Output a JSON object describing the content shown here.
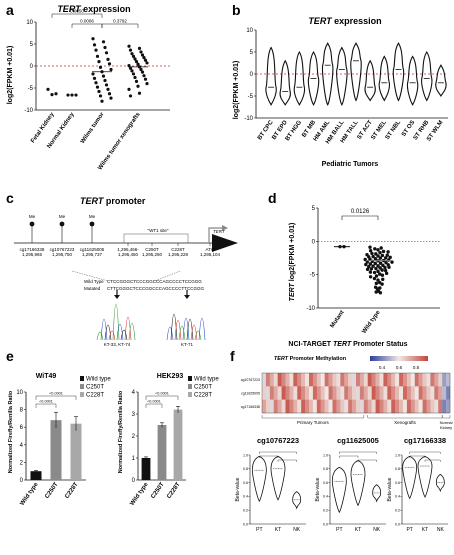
{
  "panels": {
    "a": {
      "letter": "a",
      "title_italic": "TERT",
      "title_rest": " expression",
      "ylabel": "log2(FPKM +0.01)",
      "yticks": [
        "10",
        "5",
        "0",
        "-5",
        "-10"
      ],
      "categories": [
        "Fetal Kidney",
        "Normal Kidney",
        "Wilms tumor",
        "Wilms tumor xenografts"
      ],
      "pvalues": [
        "0.0050",
        "0.0006",
        "0.3792"
      ]
    },
    "b": {
      "letter": "b",
      "title_italic": "TERT",
      "title_rest": " expression",
      "ylabel": "log2(FPKM +0.01)",
      "yticks": [
        "10",
        "5",
        "0",
        "-5",
        "-10"
      ],
      "xlabel": "Pediatric  Tumors",
      "categories": [
        "BT CPC",
        "BT EPD",
        "BT HGG",
        "BT MB",
        "HM AML",
        "HM BALL",
        "HM TALL",
        "ST ACT",
        "ST MEL",
        "ST NBL",
        "ST OS",
        "ST RHB",
        "ST WLM"
      ]
    },
    "c": {
      "letter": "c",
      "title_italic": "TERT",
      "title_rest": " promoter",
      "tert_label": "TERT",
      "wt1_label": "\"WT1 site\"",
      "me_label": "Me",
      "cpgs": [
        {
          "name": "cg17166338",
          "pos": "1,295,965"
        },
        {
          "name": "cg10767223",
          "pos": "1,295,750"
        },
        {
          "name": "cg11625005",
          "pos": "1,295,737"
        }
      ],
      "sites": [
        {
          "name": "1,295,466-1,295,460",
          "pos": ""
        },
        {
          "name": "C250T",
          "pos": "1,295,250"
        },
        {
          "name": "C228T",
          "pos": "1,295,228"
        },
        {
          "name": "ATG",
          "pos": "1,295,104"
        }
      ],
      "wild_label": "Wild Type",
      "wild_seq": "CTCCGGGCTCCCGGCCCAGCCCCTCCGGG",
      "mut_label": "Mutated",
      "mut_seq": "CTTCGGGCTCCCGGCCCAGCCCCTTCCGGG",
      "trace_labels": [
        "KT-33, KT-74",
        "KT-71"
      ]
    },
    "d": {
      "letter": "d",
      "ylabel_italic": "TERT",
      "ylabel_rest": " log2(FPKM +0.01)",
      "yticks": [
        "5",
        "0",
        "-5",
        "-10"
      ],
      "categories": [
        "Mutant",
        "Wild type"
      ],
      "pvalue": "0.0126",
      "xtitle_pre": "NCI-TARGET ",
      "xtitle_italic": "TERT",
      "xtitle_post": " Promoter Status"
    },
    "e": {
      "letter": "e",
      "ylabel": "Normalized Firefly/Renilla Ratio",
      "charts": [
        {
          "title": "WiT49",
          "yticks": [
            "10",
            "8",
            "6",
            "4",
            "2",
            "0"
          ],
          "categories": [
            "Wild type",
            "C250T",
            "C228T"
          ]
        },
        {
          "title": "HEK293",
          "yticks": [
            "4",
            "3",
            "2",
            "1",
            "0"
          ],
          "categories": [
            "Wild type",
            "C250T",
            "C228T"
          ]
        }
      ],
      "sig": "<0.0001",
      "legend": [
        "Wild type",
        "C250T",
        "C228T"
      ]
    },
    "f": {
      "letter": "f",
      "heat_title_pre": "",
      "heat_title_italic": "TERT",
      "heat_title_post": " Promoter Methylation",
      "scale_ticks": [
        "0.4",
        "0.6",
        "0.8"
      ],
      "row_labels": [
        "cg10767223",
        "cg11625005",
        "cg17166338"
      ],
      "groups": [
        "Primary Tumors",
        "Xenografts",
        "Normal Kidney"
      ],
      "violins": [
        {
          "title": "cg10767223"
        },
        {
          "title": "cg11625005"
        },
        {
          "title": "cg17166338"
        }
      ],
      "ylabel": "Beta-value",
      "yticks": [
        "1.0",
        "0.8",
        "0.6",
        "0.4",
        "0.2",
        "0.0"
      ],
      "xcats": [
        "PT",
        "KT",
        "NK"
      ]
    }
  },
  "chart_data": [
    {
      "type": "scatter",
      "panel": "a",
      "title": "TERT expression",
      "ylabel": "log2(FPKM +0.01)",
      "ylim": [
        -10,
        10
      ],
      "categories": [
        "Fetal Kidney",
        "Normal Kidney",
        "Wilms tumor",
        "Wilms tumor xenografts"
      ],
      "series": [
        {
          "values": [
            -5.3,
            -6.5,
            -6.3
          ]
        },
        {
          "values": [
            -6.6,
            -6.6,
            -6.6
          ]
        },
        {
          "values": [
            6.2,
            5.5,
            4.8,
            4.2,
            3.6,
            3.0,
            2.2,
            1.5,
            1.0,
            0.5,
            -0.3,
            -0.8,
            -1.3,
            -1.8,
            -2.3,
            -2.8,
            -3.3,
            -3.8,
            -4.3,
            -4.8,
            -5.3,
            -5.8,
            -6.3,
            -6.8,
            -7.3,
            -8.0
          ]
        },
        {
          "values": [
            4.5,
            4.0,
            3.6,
            3.2,
            2.8,
            2.5,
            2.2,
            1.9,
            1.6,
            1.3,
            1.0,
            0.7,
            0.4,
            0.1,
            -0.2,
            -0.5,
            -0.8,
            -1.1,
            -1.4,
            -1.8,
            -2.2,
            -2.6,
            -3.0,
            -3.5,
            -4.0,
            -4.6,
            -5.3,
            -6.2,
            -6.8
          ]
        }
      ],
      "pvalues": [
        "0.0050",
        "0.0006",
        "0.3792"
      ]
    },
    {
      "type": "violin",
      "panel": "b",
      "title": "TERT expression",
      "ylabel": "log2(FPKM +0.01)",
      "xlabel": "Pediatric  Tumors",
      "ylim": [
        -10,
        10
      ],
      "categories": [
        "BT CPC",
        "BT EPD",
        "BT HGG",
        "BT MB",
        "HM AML",
        "HM BALL",
        "HM TALL",
        "ST ACT",
        "ST MEL",
        "ST NBL",
        "ST OS",
        "ST RHB",
        "ST WLM"
      ],
      "ranges": [
        [
          -7,
          6
        ],
        [
          -7,
          3
        ],
        [
          -7,
          5
        ],
        [
          -7,
          5
        ],
        [
          -7,
          7
        ],
        [
          -7,
          6
        ],
        [
          -6,
          7
        ],
        [
          -6,
          3
        ],
        [
          -6,
          4
        ],
        [
          -6,
          7
        ],
        [
          -7,
          4
        ],
        [
          -6,
          5
        ],
        [
          -5,
          2
        ]
      ],
      "medians": [
        -3,
        -4,
        -3,
        -1,
        2,
        1,
        3,
        -3,
        -2,
        1,
        -2,
        -1,
        -2
      ]
    },
    {
      "type": "scatter",
      "panel": "d",
      "ylabel": "TERT log2(FPKM +0.01)",
      "ylim": [
        -10,
        5
      ],
      "categories": [
        "Mutant",
        "Wild type"
      ],
      "series": [
        {
          "name": "Mutant",
          "values": [
            -0.8,
            -0.8
          ]
        },
        {
          "name": "Wild type",
          "values": [
            -1.0,
            -1.4,
            -1.7,
            -2.0,
            -2.2,
            -2.4,
            -2.6,
            -2.8,
            -3.0,
            -3.2,
            -3.4,
            -3.6,
            -3.8,
            -4.0,
            -4.2,
            -4.5,
            -4.8,
            -5.2,
            -5.7,
            -6.3,
            -7.0,
            -7.6
          ]
        }
      ],
      "pvalue": "0.0126"
    },
    {
      "type": "bar",
      "panel": "e",
      "title": "WiT49",
      "ylabel": "Normalized Firefly/Renilla Ratio",
      "categories": [
        "Wild type",
        "C250T",
        "C228T"
      ],
      "values": [
        1.0,
        6.8,
        6.4
      ],
      "errors": [
        0.1,
        0.9,
        0.8
      ],
      "ylim": [
        0,
        10
      ]
    },
    {
      "type": "bar",
      "panel": "e",
      "title": "HEK293",
      "ylabel": "Normalized Firefly/Renilla Ratio",
      "categories": [
        "Wild type",
        "C250T",
        "C228T"
      ],
      "values": [
        1.0,
        2.5,
        3.2
      ],
      "errors": [
        0.05,
        0.1,
        0.15
      ],
      "ylim": [
        0,
        4
      ]
    },
    {
      "type": "violin",
      "panel": "f",
      "title": "cg10767223",
      "ylabel": "Beta-value",
      "ylim": [
        0,
        1
      ],
      "categories": [
        "PT",
        "KT",
        "NK"
      ],
      "medians": [
        0.78,
        0.8,
        0.35
      ]
    },
    {
      "type": "violin",
      "panel": "f",
      "title": "cg11625005",
      "ylabel": "Beta-value",
      "ylim": [
        0,
        1
      ],
      "categories": [
        "PT",
        "KT",
        "NK"
      ],
      "medians": [
        0.62,
        0.72,
        0.45
      ]
    },
    {
      "type": "violin",
      "panel": "f",
      "title": "cg17166338",
      "ylabel": "Beta-value",
      "ylim": [
        0,
        1
      ],
      "categories": [
        "PT",
        "KT",
        "NK"
      ],
      "medians": [
        0.82,
        0.84,
        0.6
      ]
    }
  ]
}
